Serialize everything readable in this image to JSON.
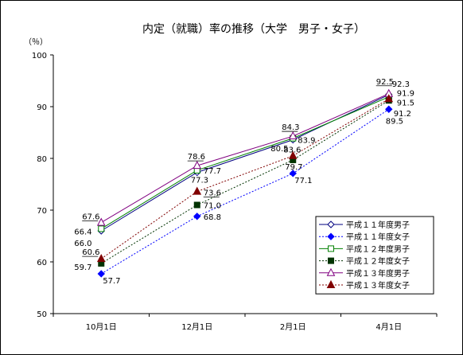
{
  "chart_data": {
    "type": "line",
    "title": "内定（就職）率の推移（大学　男子・女子）",
    "ylabel": "（％）",
    "xlabel": "",
    "categories": [
      "10月1日",
      "12月1日",
      "2月1日",
      "4月1日"
    ],
    "ylim": [
      50,
      100
    ],
    "yticks": [
      50,
      60,
      70,
      80,
      90,
      100
    ],
    "grid": false,
    "legend_position": "bottom-right",
    "series": [
      {
        "name": "平成１１年度男子",
        "values": [
          66.0,
          77.3,
          83.6,
          92.3
        ],
        "color": "#000080",
        "dash": false,
        "marker": "diamond-open"
      },
      {
        "name": "平成１１年度女子",
        "values": [
          57.7,
          68.8,
          77.1,
          89.5
        ],
        "color": "#0000ff",
        "dash": true,
        "marker": "diamond-filled"
      },
      {
        "name": "平成１２年度男子",
        "values": [
          66.4,
          77.7,
          83.9,
          91.9
        ],
        "color": "#008000",
        "dash": false,
        "marker": "square-open"
      },
      {
        "name": "平成１２年度女子",
        "values": [
          59.7,
          71.0,
          79.7,
          91.2
        ],
        "color": "#003300",
        "dash": true,
        "marker": "square-filled"
      },
      {
        "name": "平成１３年度男子",
        "values": [
          67.6,
          78.6,
          84.3,
          92.5
        ],
        "color": "#800080",
        "dash": false,
        "marker": "triangle-open"
      },
      {
        "name": "平成１３年度女子",
        "values": [
          60.6,
          73.6,
          80.5,
          91.5
        ],
        "color": "#800000",
        "dash": true,
        "marker": "triangle-filled"
      }
    ],
    "data_labels": [
      {
        "text": "67.6",
        "series": 4,
        "point": 0
      },
      {
        "text": "66.4",
        "series": 2,
        "point": 0
      },
      {
        "text": "66.0",
        "series": 0,
        "point": 0
      },
      {
        "text": "60.6",
        "series": 5,
        "point": 0
      },
      {
        "text": "59.7",
        "series": 3,
        "point": 0
      },
      {
        "text": "57.7",
        "series": 1,
        "point": 0
      },
      {
        "text": "78.6",
        "series": 4,
        "point": 1
      },
      {
        "text": "77.7",
        "series": 2,
        "point": 1
      },
      {
        "text": "77.3",
        "series": 0,
        "point": 1
      },
      {
        "text": "73.6",
        "series": 5,
        "point": 1
      },
      {
        "text": "71.0",
        "series": 3,
        "point": 1
      },
      {
        "text": "68.8",
        "series": 1,
        "point": 1
      },
      {
        "text": "84.3",
        "series": 4,
        "point": 2
      },
      {
        "text": "83.9",
        "series": 2,
        "point": 2
      },
      {
        "text": "83.6",
        "series": 0,
        "point": 2
      },
      {
        "text": "80.5",
        "series": 5,
        "point": 2
      },
      {
        "text": "79.7",
        "series": 3,
        "point": 2
      },
      {
        "text": "77.1",
        "series": 1,
        "point": 2
      },
      {
        "text": "92.5",
        "series": 4,
        "point": 3
      },
      {
        "text": "92.3",
        "series": 0,
        "point": 3
      },
      {
        "text": "91.9",
        "series": 2,
        "point": 3
      },
      {
        "text": "91.5",
        "series": 5,
        "point": 3
      },
      {
        "text": "91.2",
        "series": 3,
        "point": 3
      },
      {
        "text": "89.5",
        "series": 1,
        "point": 3
      }
    ]
  }
}
